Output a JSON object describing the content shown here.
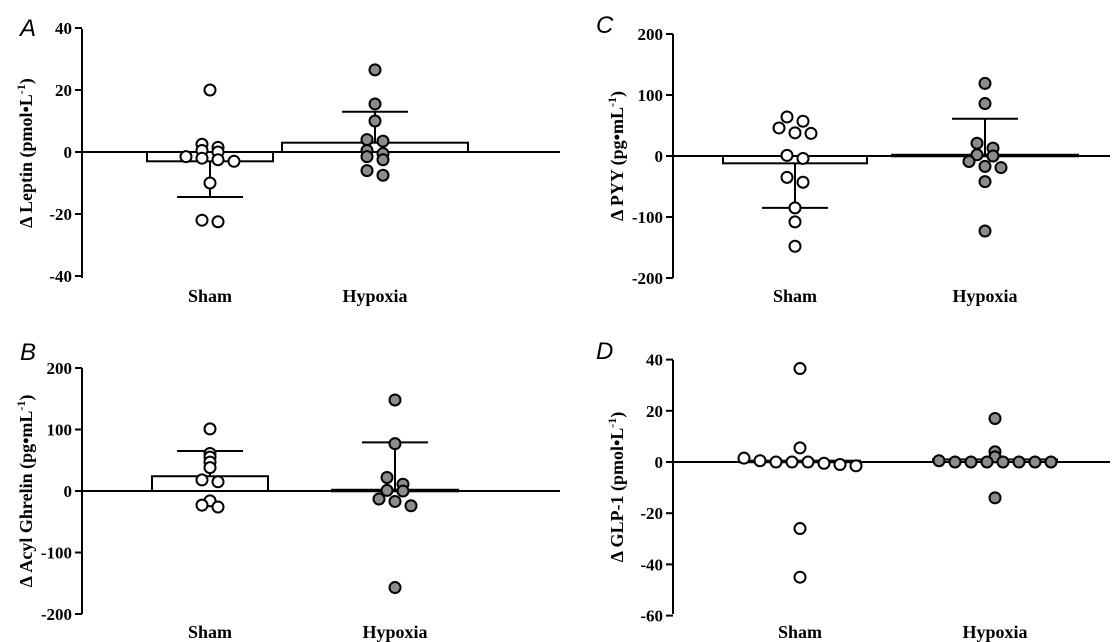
{
  "chart_data": [
    {
      "panel": "A",
      "type": "scatter",
      "ylabel": "Δ Leptin (pmol•L",
      "ylabel_sup": "-1",
      "ylabel_close": ")",
      "ylim": [
        -40,
        40
      ],
      "yticks": [
        -40,
        -20,
        0,
        20,
        40
      ],
      "categories": [
        "Sham",
        "Hypoxia"
      ],
      "groups": [
        {
          "name": "Sham",
          "fill": "#ffffff",
          "mean": -3,
          "sd_upper": null,
          "sd_lower": -14.5,
          "points": [
            20,
            2.5,
            1.5,
            0.5,
            0,
            -1.5,
            -2,
            -2.5,
            -3,
            -10,
            -22,
            -22.5
          ]
        },
        {
          "name": "Hypoxia",
          "fill": "#8c8c8c",
          "mean": 3,
          "sd_upper": 13,
          "sd_lower": null,
          "points": [
            26.5,
            15.5,
            10,
            4,
            3.5,
            0.5,
            -0.5,
            -1.5,
            -2.5,
            -6,
            -7.5
          ]
        }
      ]
    },
    {
      "panel": "C",
      "type": "scatter",
      "ylabel": "Δ PYY (pg•mL",
      "ylabel_sup": "-1",
      "ylabel_close": ")",
      "ylim": [
        -200,
        200
      ],
      "yticks": [
        -200,
        -100,
        0,
        100,
        200
      ],
      "categories": [
        "Sham",
        "Hypoxia"
      ],
      "groups": [
        {
          "name": "Sham",
          "fill": "#ffffff",
          "mean": -12,
          "sd_upper": null,
          "sd_lower": -85,
          "points": [
            64,
            57,
            46,
            38,
            37,
            1,
            -4,
            -35,
            -43,
            -85,
            -108,
            -148
          ]
        },
        {
          "name": "Hypoxia",
          "fill": "#8c8c8c",
          "mean": 2,
          "sd_upper": 61,
          "sd_lower": null,
          "points": [
            119,
            86,
            21,
            13,
            2,
            0,
            -9,
            -17,
            -19,
            -42,
            -123
          ]
        }
      ]
    },
    {
      "panel": "B",
      "type": "scatter",
      "ylabel": "Δ Acyl Ghrelin (pg•mL",
      "ylabel_sup": "-1",
      "ylabel_close": ")",
      "ylim": [
        -200,
        200
      ],
      "yticks": [
        -200,
        -100,
        0,
        100,
        200
      ],
      "categories": [
        "Sham",
        "Hypoxia"
      ],
      "groups": [
        {
          "name": "Sham",
          "fill": "#ffffff",
          "mean": 24,
          "sd_upper": 65,
          "sd_lower": null,
          "points": [
            101,
            61,
            55,
            47,
            38,
            18,
            15,
            -16,
            -23,
            -26
          ]
        },
        {
          "name": "Hypoxia",
          "fill": "#8c8c8c",
          "mean": 2,
          "sd_upper": 79,
          "sd_lower": null,
          "points": [
            148,
            77,
            22,
            11,
            1,
            0,
            -13,
            -17,
            -24,
            -157
          ]
        }
      ]
    },
    {
      "panel": "D",
      "type": "scatter",
      "ylabel": "Δ GLP-1 (pmol•L",
      "ylabel_sup": "-1",
      "ylabel_close": ")",
      "ylim": [
        -60,
        40
      ],
      "yticks": [
        -60,
        -40,
        -20,
        0,
        20,
        40
      ],
      "categories": [
        "Sham",
        "Hypoxia"
      ],
      "groups": [
        {
          "name": "Sham",
          "fill": "#ffffff",
          "mean": 0.5,
          "sd_upper": null,
          "sd_lower": null,
          "points": [
            36.5,
            5.5,
            1.5,
            0.5,
            0,
            0,
            0,
            -0.5,
            -1,
            -1.5,
            -26,
            -45
          ]
        },
        {
          "name": "Hypoxia",
          "fill": "#8c8c8c",
          "mean": 1,
          "sd_upper": null,
          "sd_lower": null,
          "points": [
            17,
            4,
            2,
            0.5,
            0,
            0,
            0,
            0,
            0,
            0,
            0,
            -14
          ]
        }
      ]
    }
  ]
}
